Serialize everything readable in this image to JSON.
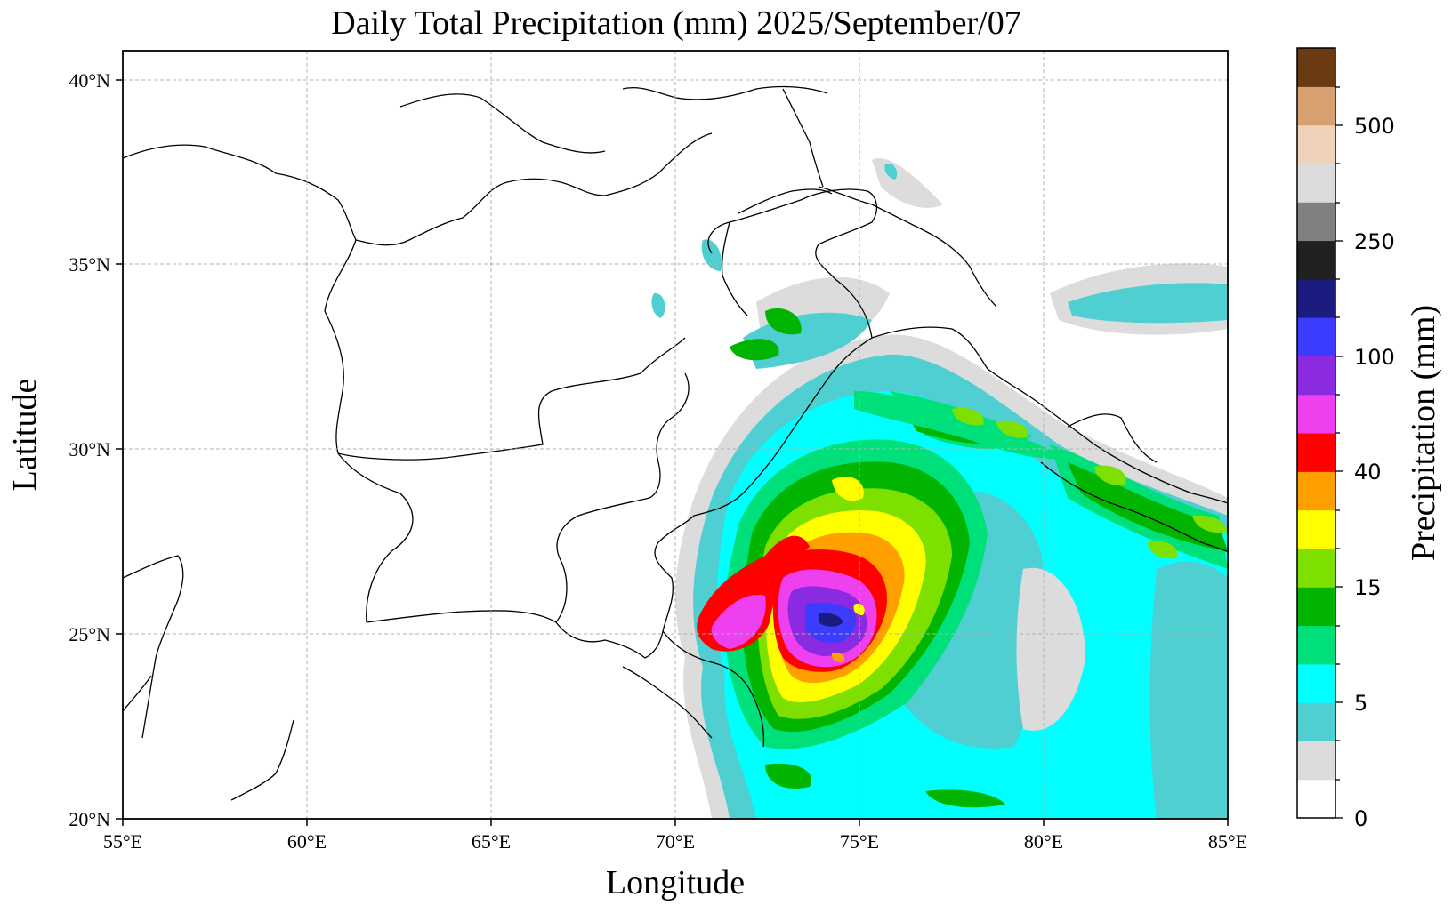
{
  "title": "Daily Total Precipitation (mm)  2025/September/07",
  "map": {
    "xlabel": "Longitude",
    "ylabel": "Latitude",
    "x_ticks": [
      "55°E",
      "60°E",
      "65°E",
      "70°E",
      "75°E",
      "80°E",
      "85°E"
    ],
    "y_ticks": [
      "20°N",
      "25°N",
      "30°N",
      "35°N",
      "40°N"
    ],
    "lon_range": [
      55,
      85
    ],
    "lat_range": [
      20,
      40.8
    ],
    "gridlines": true,
    "borders_color": "#000000"
  },
  "colorbar": {
    "label": "Precipitation (mm)",
    "tick_labels": [
      "0",
      "5",
      "15",
      "40",
      "100",
      "250",
      "500"
    ],
    "colors": [
      "#ffffff",
      "#dcdcdc",
      "#4fcfd1",
      "#00ffff",
      "#00e07a",
      "#00b400",
      "#7ee000",
      "#ffff00",
      "#ffa000",
      "#ff0000",
      "#ee40ee",
      "#8a2be2",
      "#3c3cff",
      "#1c1c80",
      "#202020",
      "#808080",
      "#dcdcdc",
      "#f0d2b8",
      "#d8a070",
      "#6a3b12"
    ]
  }
}
